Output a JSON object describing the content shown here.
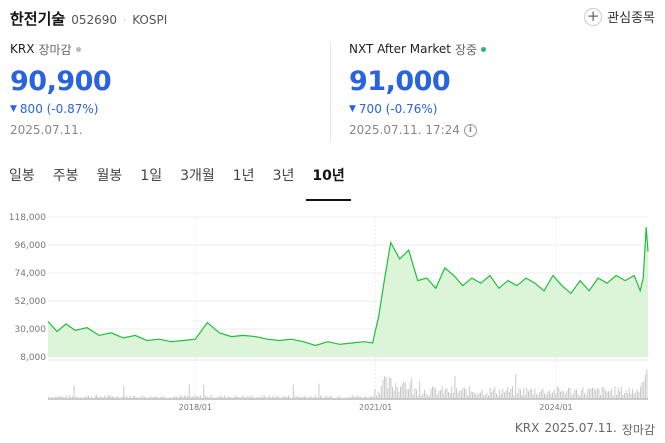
{
  "header": {
    "name": "한전기술",
    "code": "052690",
    "market": "KOSPI",
    "watch_label": "관심종목"
  },
  "krx": {
    "label": "KRX",
    "status": "장마감",
    "status_color": "#bbbbbb",
    "price": "90,900",
    "change": "800 (-0.87%)",
    "date": "2025.07.11."
  },
  "nxt": {
    "label": "NXT After Market",
    "status": "장중",
    "status_color": "#22b573",
    "price": "91,000",
    "change": "700 (-0.76%)",
    "date": "2025.07.11. 17:24"
  },
  "tabs": [
    "일봉",
    "주봉",
    "월봉",
    "1일",
    "3개월",
    "1년",
    "3년",
    "10년"
  ],
  "active_tab": "10년",
  "colors": {
    "price_down": "#2a63e0",
    "line": "#1fbf3a",
    "fill": "#dcf5d8",
    "volume": "#c9c9c9"
  },
  "chart_data": {
    "type": "area",
    "yticks": [
      "118,000",
      "96,000",
      "74,000",
      "52,000",
      "30,000",
      "8,000"
    ],
    "ylim": [
      8000,
      118000
    ],
    "xticks": [
      "2018/01",
      "2021/01",
      "2024/01"
    ],
    "xtick_years": [
      2018.0,
      2021.0,
      2024.0
    ],
    "x_range": [
      2015.55,
      2025.53
    ],
    "x": [
      2015.55,
      2015.7,
      2015.85,
      2016.0,
      2016.2,
      2016.4,
      2016.6,
      2016.8,
      2017.0,
      2017.2,
      2017.4,
      2017.6,
      2017.8,
      2018.0,
      2018.2,
      2018.4,
      2018.6,
      2018.8,
      2019.0,
      2019.2,
      2019.4,
      2019.6,
      2019.8,
      2020.0,
      2020.2,
      2020.4,
      2020.6,
      2020.8,
      2020.95,
      2021.05,
      2021.15,
      2021.25,
      2021.4,
      2021.55,
      2021.7,
      2021.85,
      2022.0,
      2022.15,
      2022.3,
      2022.45,
      2022.6,
      2022.75,
      2022.9,
      2023.05,
      2023.2,
      2023.35,
      2023.5,
      2023.65,
      2023.8,
      2023.95,
      2024.1,
      2024.25,
      2024.4,
      2024.55,
      2024.7,
      2024.85,
      2025.0,
      2025.15,
      2025.3,
      2025.4,
      2025.45,
      2025.5,
      2025.53
    ],
    "y": [
      36000,
      28000,
      34000,
      29000,
      31000,
      25000,
      27000,
      23000,
      25000,
      21000,
      22000,
      20000,
      21000,
      22000,
      35000,
      27000,
      24000,
      25000,
      24000,
      22000,
      21000,
      22000,
      20000,
      17000,
      20000,
      18000,
      19000,
      20000,
      19000,
      40000,
      70000,
      98000,
      85000,
      92000,
      68000,
      70000,
      62000,
      78000,
      72000,
      64000,
      70000,
      66000,
      72000,
      62000,
      68000,
      64000,
      70000,
      66000,
      60000,
      72000,
      64000,
      58000,
      68000,
      60000,
      70000,
      66000,
      72000,
      68000,
      72000,
      60000,
      70000,
      110000,
      90900
    ],
    "volume_note": ""
  },
  "footer": {
    "source": "KRX",
    "date": "2025.07.11.",
    "status": "장마감"
  }
}
